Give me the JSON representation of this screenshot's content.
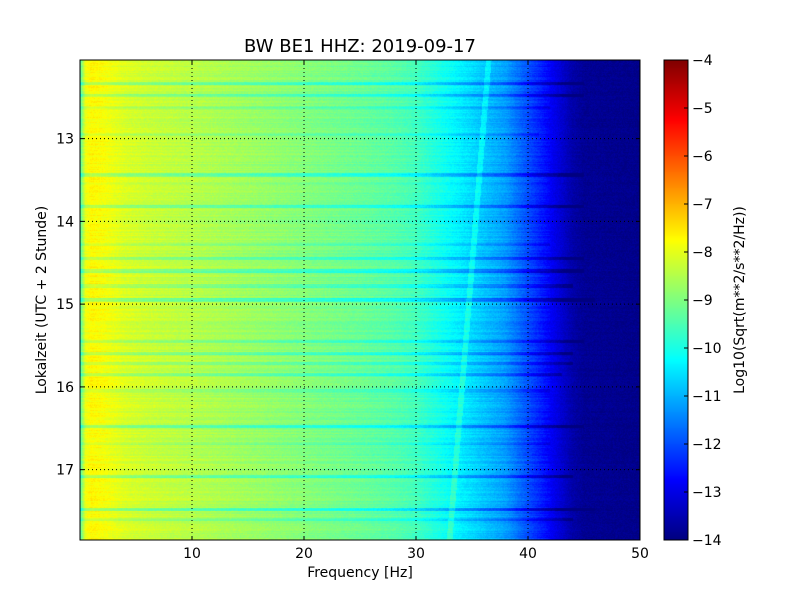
{
  "chart_data": {
    "type": "heatmap",
    "title": "BW BE1 HHZ: 2019-09-17",
    "xlabel": "Frequency [Hz]",
    "ylabel": "Lokalzeit (UTC + 2 Stunde)",
    "xlim": [
      0,
      50
    ],
    "ylim": [
      12.05,
      17.85
    ],
    "y_inverted": true,
    "x_ticks": [
      "10",
      "20",
      "30",
      "40",
      "50"
    ],
    "y_ticks": [
      "13",
      "14",
      "15",
      "16",
      "17"
    ],
    "grid": true,
    "colormap": "jet",
    "colorbar": {
      "label": "Log10(Sqrt(m**2/s**2/Hz))",
      "range": [
        -14,
        -4
      ],
      "ticks": [
        "-4",
        "-5",
        "-6",
        "-7",
        "-8",
        "-9",
        "-10",
        "-11",
        "-12",
        "-13",
        "-14"
      ]
    },
    "spectrum_profile": {
      "frequency_hz": [
        0,
        0.5,
        1,
        2,
        4,
        6,
        8,
        10,
        15,
        20,
        25,
        28,
        30,
        32,
        34,
        36,
        38,
        39,
        40,
        42,
        43,
        44,
        45,
        50
      ],
      "log10_psd": [
        -9.5,
        -7.9,
        -7.7,
        -7.8,
        -8.1,
        -8.25,
        -8.35,
        -8.45,
        -8.7,
        -8.95,
        -9.2,
        -9.4,
        -9.6,
        -10.0,
        -10.4,
        -10.8,
        -11.2,
        -11.6,
        -12.0,
        -12.8,
        -13.2,
        -13.6,
        -13.8,
        -13.9
      ]
    },
    "line_artifacts": [
      {
        "time": 12.33,
        "log10_offset": -0.75,
        "fmax_hz": 45
      },
      {
        "time": 12.48,
        "log10_offset": -0.7,
        "fmax_hz": 45
      },
      {
        "time": 12.62,
        "log10_offset": -0.35,
        "fmax_hz": 42
      },
      {
        "time": 12.95,
        "log10_offset": -0.3,
        "fmax_hz": 41
      },
      {
        "time": 13.44,
        "log10_offset": -0.7,
        "fmax_hz": 45
      },
      {
        "time": 13.82,
        "log10_offset": -0.85,
        "fmax_hz": 45
      },
      {
        "time": 14.28,
        "log10_offset": -0.35,
        "fmax_hz": 42
      },
      {
        "time": 14.45,
        "log10_offset": -0.7,
        "fmax_hz": 45
      },
      {
        "time": 14.6,
        "log10_offset": -0.75,
        "fmax_hz": 45
      },
      {
        "time": 14.78,
        "log10_offset": -0.6,
        "fmax_hz": 44
      },
      {
        "time": 14.95,
        "log10_offset": -0.8,
        "fmax_hz": 46
      },
      {
        "time": 15.45,
        "log10_offset": -0.6,
        "fmax_hz": 45
      },
      {
        "time": 15.6,
        "log10_offset": -0.7,
        "fmax_hz": 44
      },
      {
        "time": 15.72,
        "log10_offset": -0.5,
        "fmax_hz": 44
      },
      {
        "time": 15.85,
        "log10_offset": -0.55,
        "fmax_hz": 43
      },
      {
        "time": 16.05,
        "log10_offset": -0.4,
        "fmax_hz": 42
      },
      {
        "time": 16.48,
        "log10_offset": -0.8,
        "fmax_hz": 45
      },
      {
        "time": 16.68,
        "log10_offset": -0.35,
        "fmax_hz": 42
      },
      {
        "time": 17.08,
        "log10_offset": -0.75,
        "fmax_hz": 44
      },
      {
        "time": 17.48,
        "log10_offset": -0.85,
        "fmax_hz": 46
      },
      {
        "time": 17.6,
        "log10_offset": -0.5,
        "fmax_hz": 44
      }
    ],
    "drifting_line": {
      "start": {
        "time": 12.05,
        "frequency_hz": 36.5
      },
      "end": {
        "time": 17.85,
        "frequency_hz": 33.0
      }
    }
  }
}
